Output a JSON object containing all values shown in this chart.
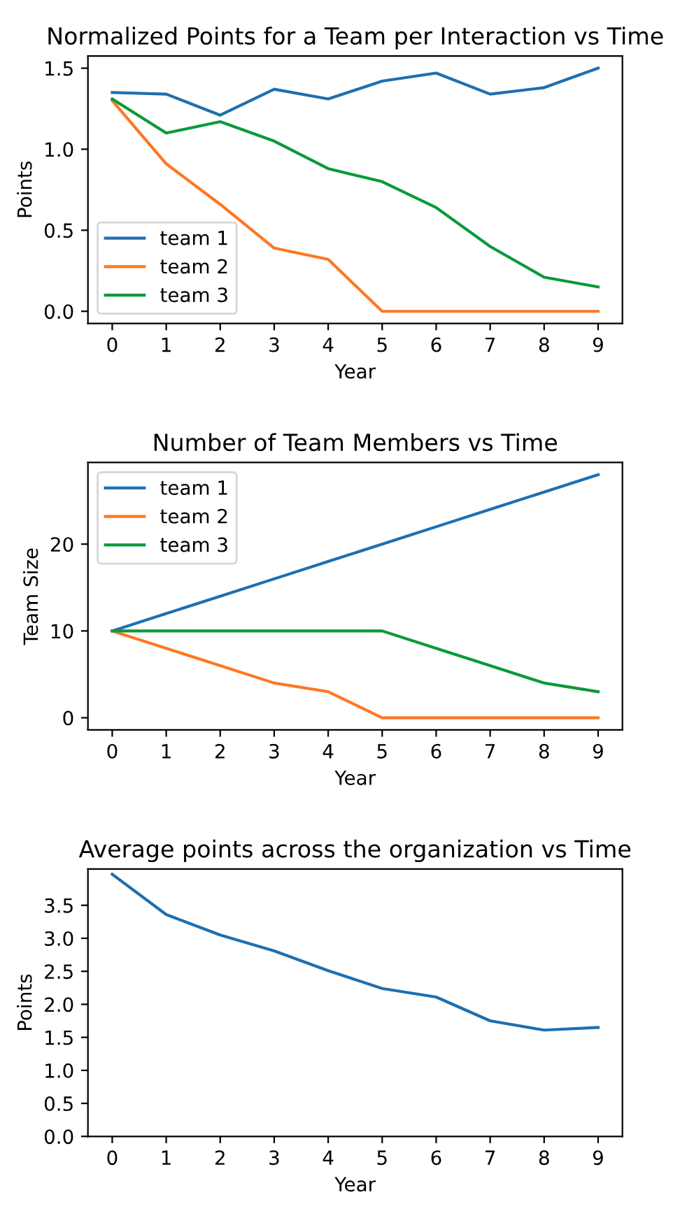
{
  "chart_data": [
    {
      "type": "line",
      "title": "Normalized Points for a Team per Interaction vs Time",
      "xlabel": "Year",
      "ylabel": "Points",
      "x": [
        0,
        1,
        2,
        3,
        4,
        5,
        6,
        7,
        8,
        9
      ],
      "xlim": [
        -0.45,
        9.45
      ],
      "xticks": [
        0,
        1,
        2,
        3,
        4,
        5,
        6,
        7,
        8,
        9
      ],
      "ylim": [
        -0.075,
        1.575
      ],
      "yticks": [
        {
          "value": 0,
          "label": "0.0"
        },
        0.5,
        {
          "value": 1,
          "label": "1.0"
        },
        1.5
      ],
      "legend": "bottom left",
      "grid": false,
      "series": [
        {
          "name": "team 1",
          "color": "#1f6fb0",
          "values": [
            1.35,
            1.34,
            1.21,
            1.37,
            1.31,
            1.42,
            1.47,
            1.34,
            1.38,
            1.5
          ]
        },
        {
          "name": "team 2",
          "color": "#ff7722",
          "values": [
            1.3,
            0.91,
            0.66,
            0.39,
            0.32,
            0,
            0,
            0,
            0,
            0
          ]
        },
        {
          "name": "team 3",
          "color": "#0a9a3a",
          "values": [
            1.31,
            1.1,
            1.17,
            1.05,
            0.88,
            0.8,
            0.64,
            0.4,
            0.21,
            0.15
          ]
        }
      ]
    },
    {
      "type": "line",
      "title": "Number of Team Members vs Time",
      "xlabel": "Year",
      "ylabel": "Team Size",
      "x": [
        0,
        1,
        2,
        3,
        4,
        5,
        6,
        7,
        8,
        9
      ],
      "xlim": [
        -0.45,
        9.45
      ],
      "xticks": [
        0,
        1,
        2,
        3,
        4,
        5,
        6,
        7,
        8,
        9
      ],
      "ylim": [
        -1.4,
        29.4
      ],
      "yticks": [
        0,
        10,
        20
      ],
      "legend": "top left",
      "grid": false,
      "series": [
        {
          "name": "team 1",
          "color": "#1f6fb0",
          "values": [
            10,
            12,
            14,
            16,
            18,
            20,
            22,
            24,
            26,
            28
          ]
        },
        {
          "name": "team 2",
          "color": "#ff7722",
          "values": [
            10,
            8,
            6,
            4,
            3,
            0,
            0,
            0,
            0,
            0
          ]
        },
        {
          "name": "team 3",
          "color": "#0a9a3a",
          "values": [
            10,
            10,
            10,
            10,
            10,
            10,
            8,
            6,
            4,
            3
          ]
        }
      ]
    },
    {
      "type": "line",
      "title": "Average points across the organization vs Time",
      "xlabel": "Year",
      "ylabel": "Points",
      "x": [
        0,
        1,
        2,
        3,
        4,
        5,
        6,
        7,
        8,
        9
      ],
      "xlim": [
        -0.45,
        9.45
      ],
      "xticks": [
        0,
        1,
        2,
        3,
        4,
        5,
        6,
        7,
        8,
        9
      ],
      "ylim": [
        0,
        4.05
      ],
      "yticks": [
        {
          "value": 0,
          "label": "0.0"
        },
        0.5,
        {
          "value": 1,
          "label": "1.0"
        },
        1.5,
        {
          "value": 2,
          "label": "2.0"
        },
        2.5,
        {
          "value": 3,
          "label": "3.0"
        },
        3.5
      ],
      "legend": false,
      "grid": false,
      "series": [
        {
          "color": "#1f6fb0",
          "values": [
            3.97,
            3.36,
            3.05,
            2.81,
            2.51,
            2.24,
            2.11,
            1.75,
            1.61,
            1.65
          ]
        }
      ]
    }
  ]
}
